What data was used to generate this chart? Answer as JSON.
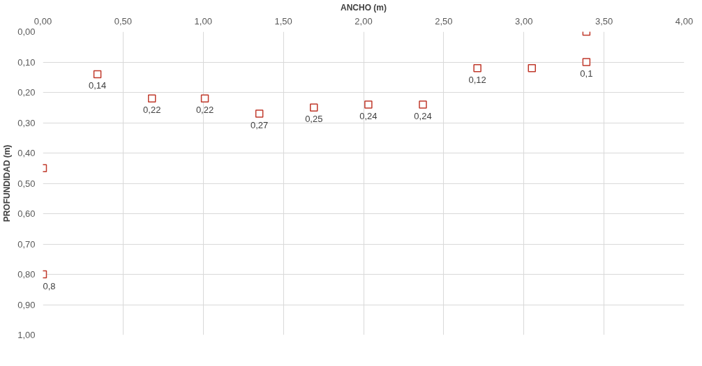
{
  "chart_data": {
    "type": "scatter",
    "xlabel": "ANCHO (m)",
    "ylabel": "PROFUNDIDAD (m)",
    "x": [
      0,
      0,
      0.34,
      0.68,
      1.01,
      1.35,
      1.69,
      2.03,
      2.37,
      2.71,
      3.05,
      3.39,
      3.39
    ],
    "series": [
      {
        "color": "#c0392b",
        "values": [
          0.8,
          0.45,
          0.14,
          0.22,
          0.22,
          0.27,
          0.25,
          0.24,
          0.24,
          0.12,
          0.12,
          0.1,
          0.0
        ],
        "value_labels": [
          "0,8",
          null,
          "0,14",
          "0,22",
          "0,22",
          "0,27",
          "0,25",
          "0,24",
          "0,24",
          "0,12",
          null,
          "0,1",
          null
        ]
      }
    ],
    "xlim": [
      0,
      4
    ],
    "ylim": [
      1,
      0
    ],
    "xticks": [
      {
        "value": 0,
        "label": "0,00"
      },
      {
        "value": 0.5,
        "label": "0,50"
      },
      {
        "value": 1,
        "label": "1,00"
      },
      {
        "value": 1.5,
        "label": "1,50"
      },
      {
        "value": 2,
        "label": "2,00"
      },
      {
        "value": 2.5,
        "label": "2,50"
      },
      {
        "value": 3,
        "label": "3,00"
      },
      {
        "value": 3.5,
        "label": "3,50"
      },
      {
        "value": 4,
        "label": "4,00"
      }
    ],
    "yticks": [
      {
        "value": 0,
        "label": "0,00"
      },
      {
        "value": 0.1,
        "label": "0,10"
      },
      {
        "value": 0.2,
        "label": "0,20"
      },
      {
        "value": 0.3,
        "label": "0,30"
      },
      {
        "value": 0.4,
        "label": "0,40"
      },
      {
        "value": 0.5,
        "label": "0,50"
      },
      {
        "value": 0.6,
        "label": "0,60"
      },
      {
        "value": 0.7,
        "label": "0,70"
      },
      {
        "value": 0.8,
        "label": "0,80"
      },
      {
        "value": 0.9,
        "label": "0,90"
      },
      {
        "value": 1,
        "label": "1,00"
      }
    ],
    "grid": true,
    "marker": "square"
  }
}
